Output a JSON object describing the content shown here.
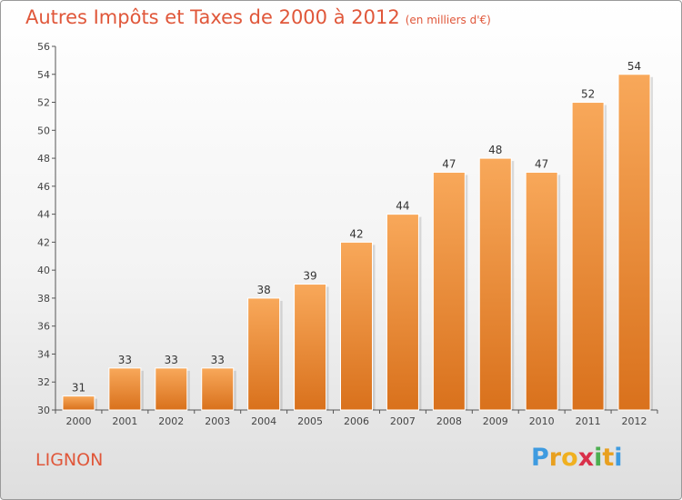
{
  "header": {
    "title": "Autres Impôts et Taxes de 2000 à 2012",
    "subtitle": "(en milliers d'€)"
  },
  "footer": {
    "commune": "LIGNON",
    "logo": [
      "P",
      "r",
      "o",
      "x",
      "i",
      "t",
      "i"
    ]
  },
  "colors": {
    "title": "#e0573a",
    "bar_top": "#f8a85a",
    "bar_bottom": "#d9711c",
    "axis": "#555555",
    "grid": "#cccccc",
    "logo": [
      "#3e9be0",
      "#e8a020",
      "#f0b020",
      "#d9304a",
      "#4caf50",
      "#e8a020",
      "#3e9be0"
    ]
  },
  "chart_data": {
    "type": "bar",
    "categories": [
      "2000",
      "2001",
      "2002",
      "2003",
      "2004",
      "2005",
      "2006",
      "2007",
      "2008",
      "2009",
      "2010",
      "2011",
      "2012"
    ],
    "values": [
      31,
      33,
      33,
      33,
      38,
      39,
      42,
      44,
      47,
      48,
      47,
      52,
      54
    ],
    "ylim": [
      30,
      56
    ],
    "yticks": [
      30,
      32,
      34,
      36,
      38,
      40,
      42,
      44,
      46,
      48,
      50,
      52,
      54,
      56
    ],
    "grid": false,
    "data_labels": true
  }
}
